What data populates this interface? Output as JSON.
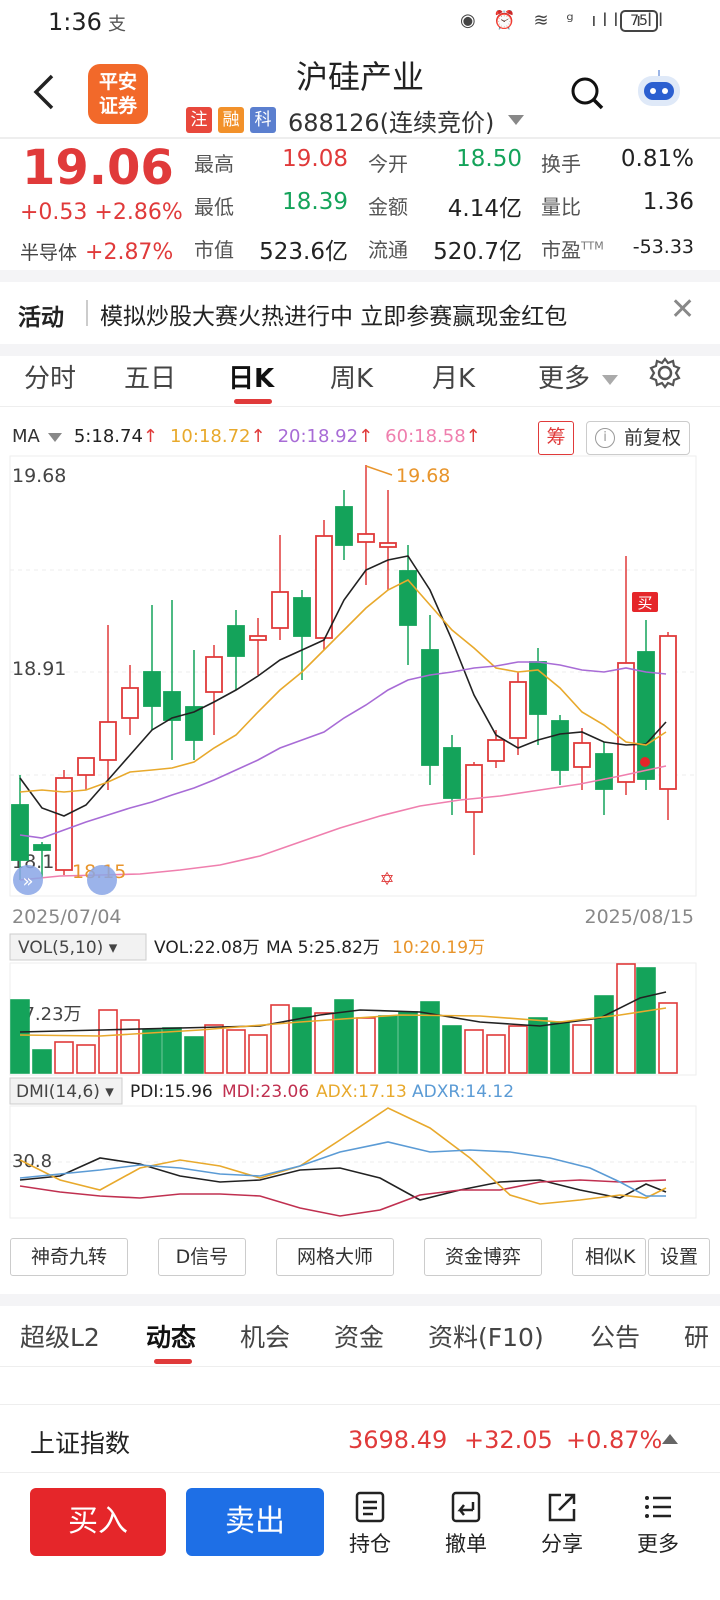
{
  "status": {
    "time": "1:36",
    "sys_glyph": "支",
    "battery": "75",
    "icons": "◉ ⏰ ≋ ᵍ ıll ıll"
  },
  "header": {
    "logo_line1": "平安",
    "logo_line2": "证券",
    "title": "沪硅产业",
    "tags": [
      {
        "label": "注",
        "color": "#e8483c"
      },
      {
        "label": "融",
        "color": "#f2912a"
      },
      {
        "label": "科",
        "color": "#5b7fcf"
      }
    ],
    "code": "688126",
    "status": "(连续竞价)"
  },
  "quote": {
    "price": "19.06",
    "change": "+0.53",
    "change_pct": "+2.86%",
    "sector_label": "半导体",
    "sector_pct": "+2.87%",
    "stats": [
      {
        "label": "最高",
        "value": "19.08",
        "color": "#e03a3a"
      },
      {
        "label": "今开",
        "value": "18.50",
        "color": "#14a35a"
      },
      {
        "label": "换手",
        "value": "0.81%",
        "color": "#222"
      },
      {
        "label": "最低",
        "value": "18.39",
        "color": "#14a35a"
      },
      {
        "label": "金额",
        "value": "4.14亿",
        "color": "#222"
      },
      {
        "label": "量比",
        "value": "1.36",
        "color": "#222"
      },
      {
        "label": "市值",
        "value": "523.6亿",
        "color": "#222"
      },
      {
        "label": "流通",
        "value": "520.7亿",
        "color": "#222"
      },
      {
        "label": "市盈",
        "value": "-53.33",
        "color": "#222",
        "sup": "TTM"
      }
    ]
  },
  "activity": {
    "tag": "活动",
    "text": "模拟炒股大赛火热进行中 立即参赛赢现金红包"
  },
  "period_tabs": [
    "分时",
    "五日",
    "日K",
    "周K",
    "月K",
    "更多"
  ],
  "ma_legend": {
    "label": "MA",
    "items": [
      {
        "text": "5:18.74",
        "color": "#222"
      },
      {
        "text": "10:18.72",
        "color": "#e8a92c"
      },
      {
        "text": "20:18.92",
        "color": "#a86cd6"
      },
      {
        "text": "60:18.58",
        "color": "#ef7fae"
      }
    ],
    "chou": "筹",
    "fq": "前复权"
  },
  "kline": {
    "price_top": "19.68",
    "price_mid": "18.91",
    "price_bottom": "18.14",
    "max_label": "19.68",
    "min_label": "18.15",
    "date_start": "2025/07/04",
    "date_end": "2025/08/15",
    "buy_marker": "买"
  },
  "vol": {
    "label": "VOL(5,10)",
    "vol": "VOL:22.08万",
    "ma5": "MA 5:25.82万",
    "ma10": "10:20.19万",
    "axis": "17.23万"
  },
  "dmi": {
    "label": "DMI(14,6)",
    "pdi": "PDI:15.96",
    "mdi": "MDI:23.06",
    "adx": "ADX:17.13",
    "adxr": "ADXR:14.12",
    "axis": "30.8"
  },
  "tools": [
    "神奇九转",
    "D信号",
    "网格大师",
    "资金博弈",
    "相似K",
    "设置"
  ],
  "bottom_tabs": [
    "超级L2",
    "动态",
    "机会",
    "资金",
    "资料(F10)",
    "公告",
    "研"
  ],
  "index": {
    "name": "上证指数",
    "value": "3698.49",
    "change": "+32.05",
    "pct": "+0.87%"
  },
  "actions": {
    "buy": "买入",
    "sell": "卖出",
    "items": [
      "持仓",
      "撤单",
      "分享",
      "更多"
    ]
  },
  "colors": {
    "up": "#e03a3a",
    "down": "#14a35a",
    "buy": "#e5262a",
    "sell": "#1e6fe6"
  }
}
